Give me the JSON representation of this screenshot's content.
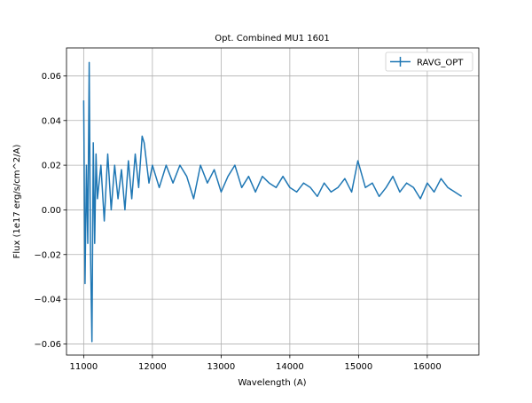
{
  "chart_data": {
    "type": "line",
    "title": "Opt. Combined MU1 1601",
    "xlabel": "Wavelength (A)",
    "ylabel": "Flux (1e17 erg/s/cm^2/A)",
    "xlim": [
      10750,
      16750
    ],
    "ylim": [
      -0.065,
      0.0725
    ],
    "x_ticks": [
      11000,
      12000,
      13000,
      14000,
      15000,
      16000
    ],
    "y_ticks": [
      -0.06,
      -0.04,
      -0.02,
      0.0,
      0.02,
      0.04,
      0.06
    ],
    "x_tick_labels": [
      "11000",
      "12000",
      "13000",
      "14000",
      "15000",
      "16000"
    ],
    "y_tick_labels": [
      "−0.06",
      "−0.04",
      "−0.02",
      "0.00",
      "0.02",
      "0.04",
      "0.06"
    ],
    "grid": true,
    "legend_position": "top-right",
    "series": [
      {
        "name": "RAVG_OPT",
        "color": "#1f77b4",
        "x": [
          11000,
          11020,
          11040,
          11060,
          11080,
          11100,
          11120,
          11140,
          11160,
          11180,
          11200,
          11250,
          11300,
          11350,
          11400,
          11450,
          11500,
          11550,
          11600,
          11650,
          11700,
          11750,
          11800,
          11850,
          11880,
          11950,
          12000,
          12100,
          12200,
          12300,
          12400,
          12500,
          12600,
          12700,
          12800,
          12900,
          13000,
          13100,
          13200,
          13300,
          13400,
          13500,
          13600,
          13700,
          13800,
          13900,
          14000,
          14100,
          14200,
          14300,
          14400,
          14500,
          14600,
          14700,
          14800,
          14900,
          14990,
          15100,
          15200,
          15300,
          15400,
          15500,
          15600,
          15700,
          15800,
          15900,
          16000,
          16100,
          16200,
          16300,
          16400,
          16500
        ],
        "y": [
          0.049,
          -0.033,
          0.02,
          -0.015,
          0.066,
          -0.02,
          -0.059,
          0.03,
          -0.015,
          0.025,
          0.005,
          0.02,
          -0.005,
          0.025,
          0.0,
          0.02,
          0.005,
          0.018,
          0.0,
          0.022,
          0.005,
          0.025,
          0.01,
          0.033,
          0.03,
          0.012,
          0.02,
          0.01,
          0.02,
          0.012,
          0.02,
          0.015,
          0.005,
          0.02,
          0.012,
          0.018,
          0.008,
          0.015,
          0.02,
          0.01,
          0.015,
          0.008,
          0.015,
          0.012,
          0.01,
          0.015,
          0.01,
          0.008,
          0.012,
          0.01,
          0.006,
          0.012,
          0.008,
          0.01,
          0.014,
          0.008,
          0.022,
          0.01,
          0.012,
          0.006,
          0.01,
          0.015,
          0.008,
          0.012,
          0.01,
          0.005,
          0.012,
          0.008,
          0.014,
          0.01,
          0.008,
          0.006
        ]
      }
    ]
  }
}
